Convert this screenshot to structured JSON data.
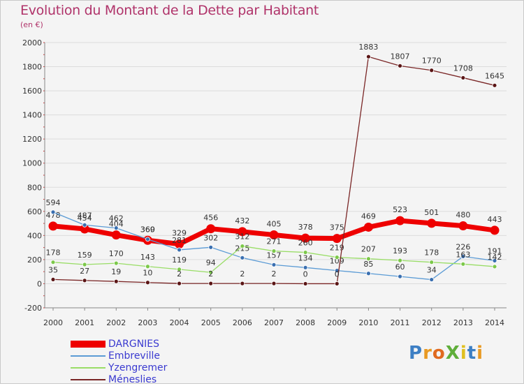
{
  "title": "Evolution du Montant de la Dette par Habitant",
  "subtitle": "(en €)",
  "logo_text": "ProXiti",
  "colors": {
    "title": "#b0336a",
    "legend_text": "#3a3ad0"
  },
  "chart_data": {
    "type": "line",
    "title": "Evolution du Montant de la Dette par Habitant",
    "subtitle": "(en €)",
    "xlabel": "",
    "ylabel": "",
    "categories": [
      "2000",
      "2001",
      "2002",
      "2003",
      "2004",
      "2005",
      "2006",
      "2007",
      "2008",
      "2009",
      "2010",
      "2011",
      "2012",
      "2013",
      "2014"
    ],
    "ylim": [
      -200,
      2000
    ],
    "yticks": [
      -200,
      0,
      200,
      400,
      600,
      800,
      1000,
      1200,
      1400,
      1600,
      1800,
      2000
    ],
    "grid": "horizontal",
    "legend_position": "bottom-left",
    "series": [
      {
        "name": "DARGNIES",
        "color": "#ee0000",
        "values": [
          478,
          454,
          404,
          360,
          329,
          456,
          432,
          405,
          378,
          375,
          469,
          523,
          501,
          480,
          443
        ]
      },
      {
        "name": "Embreville",
        "color": "#5b9bd5",
        "values": [
          594,
          487,
          462,
          369,
          281,
          302,
          215,
          157,
          134,
          109,
          85,
          60,
          34,
          226,
          191
        ]
      },
      {
        "name": "Yzengremer",
        "color": "#99dd66",
        "values": [
          178,
          159,
          170,
          143,
          119,
          94,
          312,
          271,
          260,
          219,
          207,
          193,
          178,
          163,
          142
        ]
      },
      {
        "name": "Méneslies",
        "color": "#7a2626",
        "values": [
          35,
          27,
          19,
          10,
          2,
          2,
          2,
          2,
          0,
          0,
          1883,
          1807,
          1770,
          1708,
          1645
        ]
      }
    ]
  }
}
